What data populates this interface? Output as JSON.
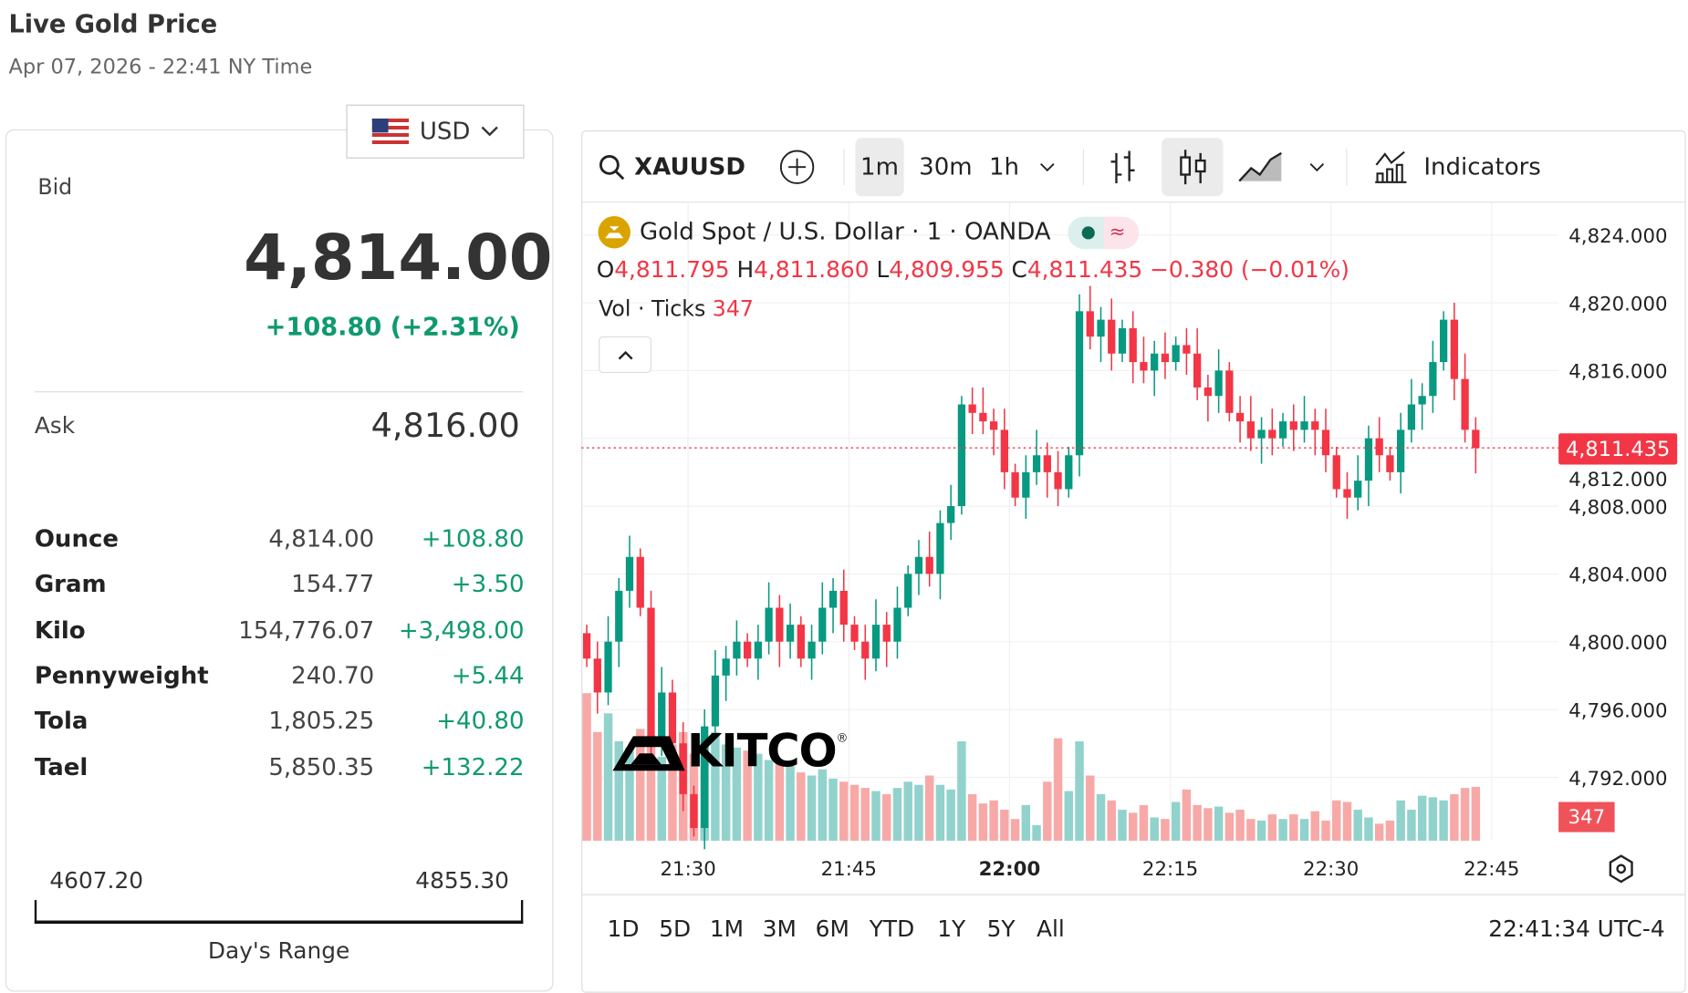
{
  "header": {
    "title": "Live Gold Price",
    "datetime": "Apr 07, 2026 - 22:41 NY Time"
  },
  "currency": {
    "selected": "USD",
    "icon": "us-flag-icon"
  },
  "quote": {
    "bid_label": "Bid",
    "bid": "4,814.00",
    "change": "+108.80 (+2.31%)",
    "ask_label": "Ask",
    "ask": "4,816.00",
    "units": [
      {
        "name": "Ounce",
        "value": "4,814.00",
        "change": "+108.80"
      },
      {
        "name": "Gram",
        "value": "154.77",
        "change": "+3.50"
      },
      {
        "name": "Kilo",
        "value": "154,776.07",
        "change": "+3,498.00"
      },
      {
        "name": "Pennyweight",
        "value": "240.70",
        "change": "+5.44"
      },
      {
        "name": "Tola",
        "value": "1,805.25",
        "change": "+40.80"
      },
      {
        "name": "Tael",
        "value": "5,850.35",
        "change": "+132.22"
      }
    ],
    "range": {
      "low": "4607.20",
      "high": "4855.30",
      "label": "Day's Range"
    }
  },
  "toolbar": {
    "symbol": "XAUUSD",
    "intervals": [
      "1m",
      "30m",
      "1h"
    ],
    "selected_interval": "1m",
    "indicators": "Indicators"
  },
  "legend": {
    "title": "Gold Spot / U.S. Dollar · 1 · OANDA",
    "o_label": "O",
    "o": "4,811.795",
    "h_label": "H",
    "h": "4,811.860",
    "l_label": "L",
    "l": "4,809.955",
    "c_label": "C",
    "c": "4,811.435",
    "change": "−0.380 (−0.01%)",
    "vol_label": "Vol · Ticks",
    "vol": "347"
  },
  "colors": {
    "up": "#089981",
    "down": "#f23645",
    "vol_up": "#92d2cc",
    "vol_down": "#f7a9a7",
    "accent_green": "#0f9a6e"
  },
  "ranges": [
    "1D",
    "5D",
    "1M",
    "3M",
    "6M",
    "YTD",
    "1Y",
    "5Y",
    "All"
  ],
  "clock": "22:41:34 UTC-4",
  "logo": "KITCO",
  "chart_data": {
    "type": "candlestick",
    "x_start": "21:20",
    "interval": "1m",
    "x_ticks": [
      "21:30",
      "21:45",
      "22:00",
      "22:15",
      "22:30",
      "22:45"
    ],
    "y_ticks": [
      "4,824.000",
      "4,820.000",
      "4,816.000",
      "4,812.000",
      "4,808.000",
      "4,804.000",
      "4,800.000",
      "4,796.000",
      "4,792.000"
    ],
    "ylim": [
      4788,
      4826
    ],
    "last_price": "4,811.435",
    "last_volume": "347",
    "closes": [
      4799,
      4797,
      4800,
      4803,
      4805,
      4802,
      4794,
      4797,
      4794,
      4791,
      4789,
      4795,
      4798,
      4799,
      4800,
      4799,
      4800,
      4802,
      4800,
      4801,
      4799,
      4800,
      4802,
      4803,
      4801,
      4800,
      4799,
      4801,
      4800,
      4802,
      4804,
      4805,
      4804,
      4807,
      4808,
      4814,
      4813.5,
      4813,
      4812.5,
      4810,
      4808.5,
      4810,
      4811,
      4810,
      4809,
      4811,
      4819.5,
      4818,
      4819,
      4817,
      4818.5,
      4816.5,
      4816,
      4817,
      4816.5,
      4817.5,
      4817,
      4815,
      4814.5,
      4816,
      4813.5,
      4813,
      4812,
      4812.5,
      4812,
      4813,
      4812.5,
      4813,
      4812.5,
      4811,
      4809,
      4808.5,
      4809.5,
      4812,
      4811,
      4810,
      4812.5,
      4814,
      4814.5,
      4816.5,
      4819,
      4815.5,
      4812.5,
      4811.435
    ],
    "volumes": [
      950,
      700,
      820,
      640,
      600,
      720,
      680,
      540,
      620,
      700,
      560,
      650,
      700,
      620,
      600,
      580,
      560,
      520,
      500,
      480,
      440,
      420,
      460,
      400,
      380,
      360,
      340,
      320,
      300,
      340,
      380,
      360,
      420,
      360,
      330,
      640,
      300,
      240,
      260,
      200,
      140,
      230,
      100,
      380,
      660,
      320,
      640,
      420,
      300,
      260,
      200,
      180,
      230,
      150,
      140,
      250,
      330,
      230,
      210,
      220,
      180,
      200,
      140,
      130,
      170,
      140,
      170,
      140,
      190,
      130,
      260,
      250,
      200,
      150,
      110,
      130,
      260,
      200,
      290,
      280,
      260,
      300,
      340,
      347
    ]
  }
}
